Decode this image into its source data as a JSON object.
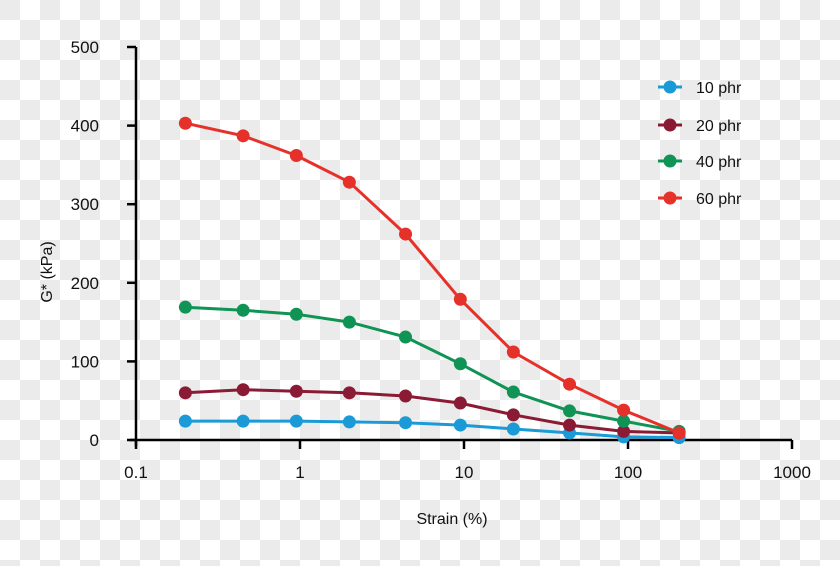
{
  "chart_data": {
    "type": "line",
    "title": "",
    "xlabel": "Strain (%)",
    "ylabel": "G* (kPa)",
    "xscale": "log",
    "xlim": [
      0.1,
      1000
    ],
    "ylim": [
      0,
      500
    ],
    "x_ticks": [
      "0.1",
      "1",
      "10",
      "100",
      "1000"
    ],
    "y_ticks": [
      "0",
      "100",
      "200",
      "300",
      "400",
      "500"
    ],
    "grid": false,
    "legend_position": "top-right",
    "x": [
      0.2,
      0.45,
      0.95,
      2.0,
      4.4,
      9.5,
      20,
      44,
      94,
      205
    ],
    "series": [
      {
        "name": "10 phr",
        "color": "#1a9ad6",
        "values": [
          24,
          24,
          24,
          23,
          22,
          19,
          14,
          9,
          4,
          3
        ]
      },
      {
        "name": "20 phr",
        "color": "#8b1a35",
        "values": [
          60,
          64,
          62,
          60,
          56,
          47,
          32,
          19,
          11,
          9
        ]
      },
      {
        "name": "40 phr",
        "color": "#0f9455",
        "values": [
          169,
          165,
          160,
          150,
          131,
          97,
          61,
          37,
          24,
          11
        ]
      },
      {
        "name": "60 phr",
        "color": "#e6302a",
        "values": [
          403,
          387,
          362,
          328,
          262,
          179,
          112,
          71,
          38,
          9
        ]
      }
    ]
  }
}
